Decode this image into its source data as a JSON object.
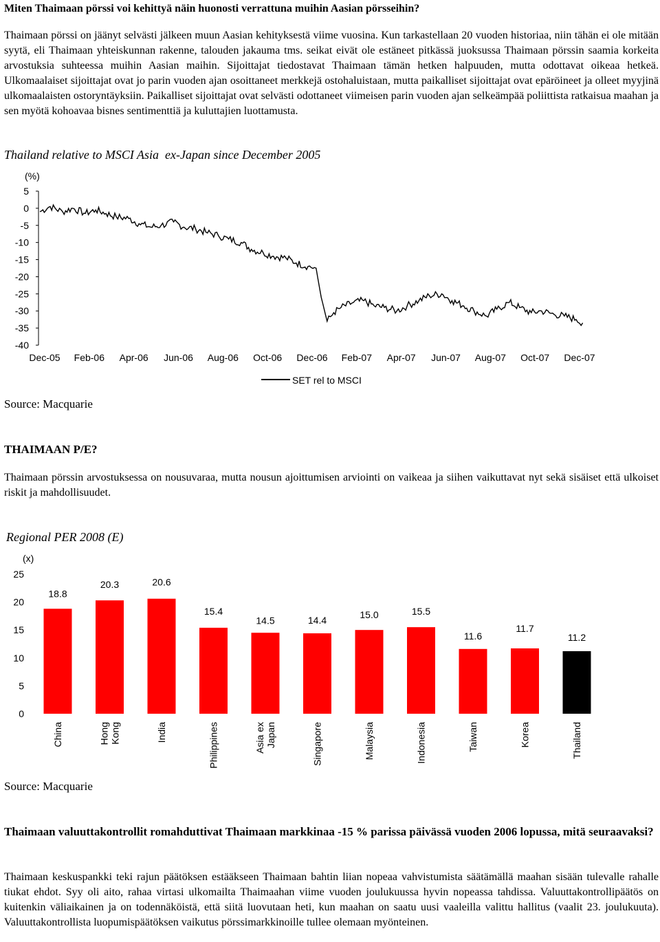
{
  "title": "Miten Thaimaan pörssi voi kehittyä näin huonosti verrattuna muihin Aasian pörsseihin?",
  "intro": "Thaimaan pörssi on jäänyt selvästi jälkeen muun Aasian kehityksestä viime vuosina. Kun tarkastellaan 20 vuoden historiaa, niin tähän ei ole mitään syytä, eli Thaimaan yhteiskunnan rakenne, talouden jakauma tms. seikat eivät ole estäneet pitkässä juoksussa Thaimaan pörssin saamia korkeita arvostuksia suhteessa muihin Aasian maihin. Sijoittajat tiedostavat Thaimaan tämän hetken halpuuden, mutta odottavat oikeaa hetkeä. Ulkomaalaiset sijoittajat ovat jo parin vuoden ajan osoittaneet merkkejä ostohaluistaan, mutta paikalliset sijoittajat ovat epäröineet ja olleet myyjinä ulkomaalaisten ostoryntäyksiin. Paikalliset sijoittajat ovat selvästi odottaneet viimeisen parin vuoden ajan selkeämpää poliittista ratkaisua maahan ja sen myötä kohoavaa bisnes sentimenttiä ja kuluttajien luottamusta.",
  "chart1_caption": "Thailand relative to MSCI Asia  ex-Japan since December 2005",
  "chart1_source": "Source: Macquarie",
  "section2_heading": "THAIMAAN P/E?",
  "section2_text": "Thaimaan pörssin arvostuksessa on nousuvaraa, mutta nousun ajoittumisen arviointi on vaikeaa ja siihen vaikuttavat nyt sekä sisäiset että ulkoiset riskit ja mahdollisuudet.",
  "chart2_caption": "Regional PER 2008 (E)",
  "chart2_source": "Source: Macquarie",
  "section3_heading": "Thaimaan valuuttakontrollit romahduttivat Thaimaan markkinaa -15 % parissa päivässä vuoden 2006 lopussa, mitä seuraavaksi?",
  "section3_text": "Thaimaan keskuspankki teki rajun päätöksen estääkseen Thaimaan bahtin liian nopeaa vahvistumista säätämällä maahan sisään tulevalle rahalle tiukat ehdot. Syy oli aito, rahaa virtasi ulkomailta Thaimaahan viime vuoden joulukuussa hyvin nopeassa tahdissa. Valuuttakontrollipäätös on kuitenkin väliaikainen ja on todennäköistä, että siitä luovutaan heti, kun maahan on saatu uusi vaaleilla valittu hallitus (vaalit 23. joulukuuta). Valuuttakontrollista luopumispäätöksen vaikutus pörssimarkkinoille tullee olemaan myönteinen.",
  "chart_data": [
    {
      "type": "line",
      "unit_label": "(%)",
      "y_ticks": [
        "5",
        "0",
        "-5",
        "-10",
        "-15",
        "-20",
        "-25",
        "-30",
        "-35",
        "-40"
      ],
      "ylim": [
        -40,
        5
      ],
      "x_ticks": [
        "Dec-05",
        "Feb-06",
        "Apr-06",
        "Jun-06",
        "Aug-06",
        "Oct-06",
        "Dec-06",
        "Feb-07",
        "Apr-07",
        "Jun-07",
        "Aug-07",
        "Oct-07",
        "Dec-07"
      ],
      "legend": "top-right",
      "series": [
        {
          "name": "SET rel to MSCI",
          "color": "#000000",
          "points": [
            [
              "2005-12-01",
              -1.0
            ],
            [
              "2005-12-15",
              0.5
            ],
            [
              "2006-01-01",
              -1.0
            ],
            [
              "2006-01-15",
              0.0
            ],
            [
              "2006-02-01",
              -1.5
            ],
            [
              "2006-02-15",
              -0.5
            ],
            [
              "2006-03-01",
              -1.5
            ],
            [
              "2006-03-15",
              -2.5
            ],
            [
              "2006-04-01",
              -3.0
            ],
            [
              "2006-04-15",
              -4.5
            ],
            [
              "2006-05-01",
              -5.5
            ],
            [
              "2006-05-15",
              -5.0
            ],
            [
              "2006-06-01",
              -4.0
            ],
            [
              "2006-06-15",
              -5.5
            ],
            [
              "2006-07-01",
              -6.0
            ],
            [
              "2006-07-15",
              -7.0
            ],
            [
              "2006-08-01",
              -8.0
            ],
            [
              "2006-08-15",
              -9.0
            ],
            [
              "2006-09-01",
              -10.0
            ],
            [
              "2006-09-15",
              -12.0
            ],
            [
              "2006-10-01",
              -13.0
            ],
            [
              "2006-10-15",
              -14.0
            ],
            [
              "2006-11-01",
              -14.5
            ],
            [
              "2006-11-15",
              -16.0
            ],
            [
              "2006-12-01",
              -17.0
            ],
            [
              "2006-12-12",
              -17.5
            ],
            [
              "2006-12-19",
              -26.0
            ],
            [
              "2006-12-27",
              -33.0
            ],
            [
              "2007-01-05",
              -30.5
            ],
            [
              "2007-01-15",
              -29.0
            ],
            [
              "2007-02-01",
              -27.5
            ],
            [
              "2007-02-15",
              -27.0
            ],
            [
              "2007-03-01",
              -28.5
            ],
            [
              "2007-03-15",
              -29.0
            ],
            [
              "2007-04-01",
              -30.0
            ],
            [
              "2007-04-15",
              -28.5
            ],
            [
              "2007-05-01",
              -27.0
            ],
            [
              "2007-05-15",
              -25.5
            ],
            [
              "2007-06-01",
              -25.0
            ],
            [
              "2007-06-15",
              -27.0
            ],
            [
              "2007-07-01",
              -28.5
            ],
            [
              "2007-07-15",
              -30.0
            ],
            [
              "2007-08-01",
              -31.5
            ],
            [
              "2007-08-15",
              -29.5
            ],
            [
              "2007-09-01",
              -27.5
            ],
            [
              "2007-09-15",
              -29.0
            ],
            [
              "2007-10-01",
              -30.5
            ],
            [
              "2007-10-15",
              -30.0
            ],
            [
              "2007-11-01",
              -31.0
            ],
            [
              "2007-11-15",
              -31.5
            ],
            [
              "2007-12-01",
              -32.5
            ],
            [
              "2007-12-10",
              -33.5
            ]
          ]
        }
      ]
    },
    {
      "type": "bar",
      "unit_label": "(x)",
      "y_ticks": [
        "25",
        "20",
        "15",
        "10",
        "5",
        "0"
      ],
      "ylim": [
        0,
        25
      ],
      "categories": [
        "China",
        "Hong Kong",
        "India",
        "Philippines",
        "Asia ex Japan",
        "Singapore",
        "Malaysia",
        "Indonesia",
        "Taiwan",
        "Korea",
        "Thailand"
      ],
      "category_lines": [
        [
          "China"
        ],
        [
          "Hong",
          "Kong"
        ],
        [
          "India"
        ],
        [
          "Philippines"
        ],
        [
          "Asia ex",
          "Japan"
        ],
        [
          "Singapore"
        ],
        [
          "Malaysia"
        ],
        [
          "Indonesia"
        ],
        [
          "Taiwan"
        ],
        [
          "Korea"
        ],
        [
          "Thailand"
        ]
      ],
      "values": [
        18.8,
        20.3,
        20.6,
        15.4,
        14.5,
        14.4,
        15.0,
        15.5,
        11.6,
        11.7,
        11.2
      ],
      "labels": [
        "18.8",
        "20.3",
        "20.6",
        "15.4",
        "14.5",
        "14.4",
        "15.0",
        "15.5",
        "11.6",
        "11.7",
        "11.2"
      ],
      "colors": [
        "#ff0000",
        "#ff0000",
        "#ff0000",
        "#ff0000",
        "#ff0000",
        "#ff0000",
        "#ff0000",
        "#ff0000",
        "#ff0000",
        "#ff0000",
        "#000000"
      ]
    }
  ]
}
